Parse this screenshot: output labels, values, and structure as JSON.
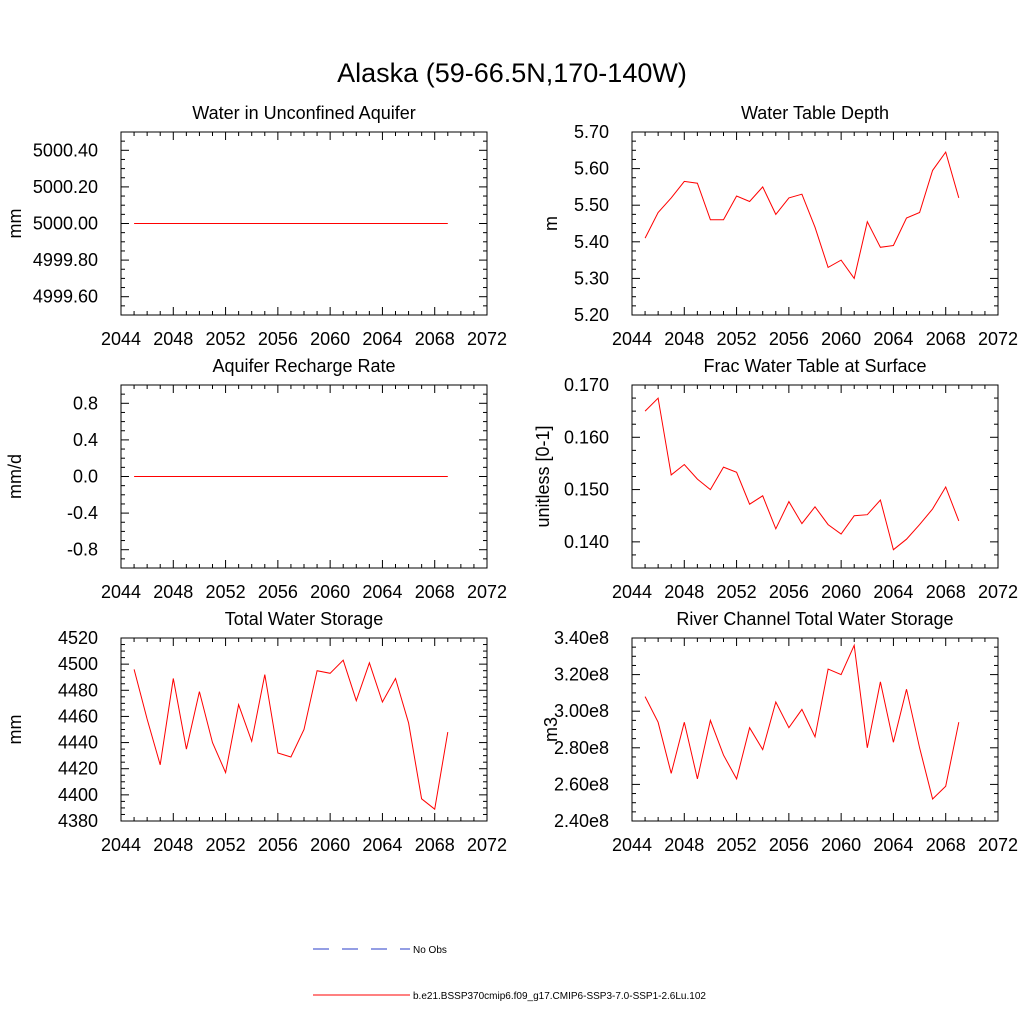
{
  "figure": {
    "title": "Alaska (59-66.5N,170-140W)",
    "colors": {
      "model": "#ff0000",
      "obs": "#2a3dc8",
      "axis": "#000000"
    }
  },
  "legend": [
    {
      "label": "No Obs",
      "style": "dashed",
      "color": "#2a3dc8"
    },
    {
      "label": "b.e21.BSSP370cmip6.f09_g17.CMIP6-SSP3-7.0-SSP1-2.6Lu.102",
      "style": "solid",
      "color": "#ff0000"
    }
  ],
  "chart_data": [
    {
      "type": "line",
      "title": "Water in Unconfined Aquifer",
      "ylabel": "mm",
      "xlim": [
        2044,
        2072
      ],
      "ylim": [
        4999.5,
        5000.5
      ],
      "xticks": [
        "2044",
        "2048",
        "2052",
        "2056",
        "2060",
        "2064",
        "2068",
        "2072"
      ],
      "yticks": [
        "4999.60",
        "4999.80",
        "5000.00",
        "5000.20",
        "5000.40"
      ],
      "x": [
        2045,
        2046,
        2047,
        2048,
        2049,
        2050,
        2051,
        2052,
        2053,
        2054,
        2055,
        2056,
        2057,
        2058,
        2059,
        2060,
        2061,
        2062,
        2063,
        2064,
        2065,
        2066,
        2067,
        2068,
        2069
      ],
      "series": [
        {
          "values": [
            5000,
            5000,
            5000,
            5000,
            5000,
            5000,
            5000,
            5000,
            5000,
            5000,
            5000,
            5000,
            5000,
            5000,
            5000,
            5000,
            5000,
            5000,
            5000,
            5000,
            5000,
            5000,
            5000,
            5000,
            5000
          ]
        }
      ]
    },
    {
      "type": "line",
      "title": "Water Table Depth",
      "ylabel": "m",
      "xlim": [
        2044,
        2072
      ],
      "ylim": [
        5.2,
        5.7
      ],
      "xticks": [
        "2044",
        "2048",
        "2052",
        "2056",
        "2060",
        "2064",
        "2068",
        "2072"
      ],
      "yticks": [
        "5.20",
        "5.30",
        "5.40",
        "5.50",
        "5.60",
        "5.70"
      ],
      "x": [
        2045,
        2046,
        2047,
        2048,
        2049,
        2050,
        2051,
        2052,
        2053,
        2054,
        2055,
        2056,
        2057,
        2058,
        2059,
        2060,
        2061,
        2062,
        2063,
        2064,
        2065,
        2066,
        2067,
        2068,
        2069
      ],
      "series": [
        {
          "values": [
            5.41,
            5.48,
            5.52,
            5.565,
            5.56,
            5.46,
            5.46,
            5.525,
            5.51,
            5.55,
            5.475,
            5.52,
            5.53,
            5.44,
            5.33,
            5.35,
            5.3,
            5.455,
            5.385,
            5.39,
            5.465,
            5.48,
            5.595,
            5.645,
            5.52
          ]
        }
      ]
    },
    {
      "type": "line",
      "title": "Aquifer Recharge Rate",
      "ylabel": "mm/d",
      "xlim": [
        2044,
        2072
      ],
      "ylim": [
        -1.0,
        1.0
      ],
      "xticks": [
        "2044",
        "2048",
        "2052",
        "2056",
        "2060",
        "2064",
        "2068",
        "2072"
      ],
      "yticks": [
        "-0.8",
        "-0.4",
        "0.0",
        "0.4",
        "0.8"
      ],
      "x": [
        2045,
        2046,
        2047,
        2048,
        2049,
        2050,
        2051,
        2052,
        2053,
        2054,
        2055,
        2056,
        2057,
        2058,
        2059,
        2060,
        2061,
        2062,
        2063,
        2064,
        2065,
        2066,
        2067,
        2068,
        2069
      ],
      "series": [
        {
          "values": [
            0,
            0,
            0,
            0,
            0,
            0,
            0,
            0,
            0,
            0,
            0,
            0,
            0,
            0,
            0,
            0,
            0,
            0,
            0,
            0,
            0,
            0,
            0,
            0,
            0
          ]
        }
      ]
    },
    {
      "type": "line",
      "title": "Frac Water Table at Surface",
      "ylabel": "unitless [0-1]",
      "xlim": [
        2044,
        2072
      ],
      "ylim": [
        0.135,
        0.17
      ],
      "xticks": [
        "2044",
        "2048",
        "2052",
        "2056",
        "2060",
        "2064",
        "2068",
        "2072"
      ],
      "yticks": [
        "0.140",
        "0.150",
        "0.160",
        "0.170"
      ],
      "x": [
        2045,
        2046,
        2047,
        2048,
        2049,
        2050,
        2051,
        2052,
        2053,
        2054,
        2055,
        2056,
        2057,
        2058,
        2059,
        2060,
        2061,
        2062,
        2063,
        2064,
        2065,
        2066,
        2067,
        2068,
        2069
      ],
      "series": [
        {
          "values": [
            0.165,
            0.1675,
            0.1528,
            0.1548,
            0.152,
            0.15,
            0.1543,
            0.1533,
            0.1472,
            0.1488,
            0.1425,
            0.1477,
            0.1435,
            0.1467,
            0.1433,
            0.1415,
            0.145,
            0.1452,
            0.148,
            0.1385,
            0.1405,
            0.1433,
            0.1463,
            0.1505,
            0.144
          ]
        }
      ]
    },
    {
      "type": "line",
      "title": "Total Water Storage",
      "ylabel": "mm",
      "xlim": [
        2044,
        2072
      ],
      "ylim": [
        4380,
        4520
      ],
      "xticks": [
        "2044",
        "2048",
        "2052",
        "2056",
        "2060",
        "2064",
        "2068",
        "2072"
      ],
      "yticks": [
        "4380",
        "4400",
        "4420",
        "4440",
        "4460",
        "4480",
        "4500",
        "4520"
      ],
      "x": [
        2045,
        2046,
        2047,
        2048,
        2049,
        2050,
        2051,
        2052,
        2053,
        2054,
        2055,
        2056,
        2057,
        2058,
        2059,
        2060,
        2061,
        2062,
        2063,
        2064,
        2065,
        2066,
        2067,
        2068,
        2069
      ],
      "series": [
        {
          "values": [
            4496,
            4458,
            4423,
            4489,
            4435,
            4479,
            4440,
            4417,
            4469,
            4441,
            4492,
            4432,
            4429,
            4450,
            4495,
            4493,
            4503,
            4472,
            4501,
            4471,
            4489,
            4455,
            4397,
            4389,
            4448
          ]
        }
      ]
    },
    {
      "type": "line",
      "title": "River Channel Total Water Storage",
      "ylabel": "m3",
      "xlim": [
        2044,
        2072
      ],
      "ylim": [
        240000000,
        340000000
      ],
      "xticks": [
        "2044",
        "2048",
        "2052",
        "2056",
        "2060",
        "2064",
        "2068",
        "2072"
      ],
      "yticks": [
        "2.40e8",
        "2.60e8",
        "2.80e8",
        "3.00e8",
        "3.20e8",
        "3.40e8"
      ],
      "x": [
        2045,
        2046,
        2047,
        2048,
        2049,
        2050,
        2051,
        2052,
        2053,
        2054,
        2055,
        2056,
        2057,
        2058,
        2059,
        2060,
        2061,
        2062,
        2063,
        2064,
        2065,
        2066,
        2067,
        2068,
        2069
      ],
      "series": [
        {
          "values": [
            308000000,
            294000000,
            266000000,
            294000000,
            263000000,
            295000000,
            276000000,
            263000000,
            291000000,
            279000000,
            305000000,
            291000000,
            301000000,
            286000000,
            323000000,
            320000000,
            336000000,
            280000000,
            316000000,
            283000000,
            312000000,
            280000000,
            252000000,
            259000000,
            294000000
          ]
        }
      ]
    }
  ]
}
